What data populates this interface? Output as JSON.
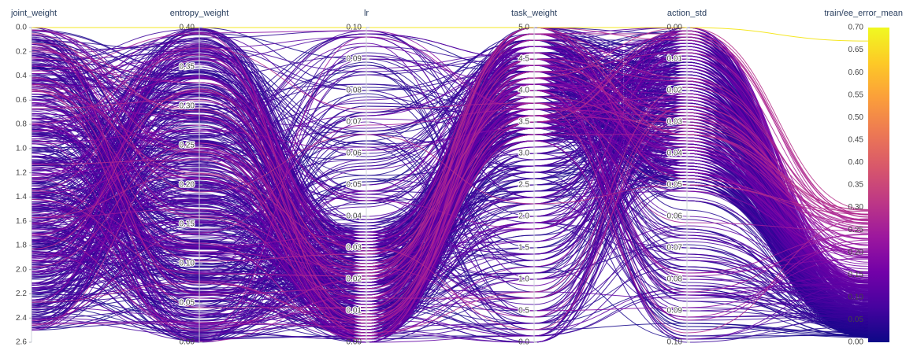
{
  "chart_data": {
    "type": "parallel_coordinates",
    "title": "",
    "axes": [
      {
        "name": "joint_weight",
        "range": [
          2.6,
          0.0
        ],
        "ticks": [
          0.0,
          0.2,
          0.4,
          0.6,
          0.8,
          1.0,
          1.2,
          1.4,
          1.6,
          1.8,
          2.0,
          2.2,
          2.4,
          2.6
        ],
        "tick_labels": [
          "0.0",
          "0.2",
          "0.4",
          "0.6",
          "0.8",
          "1.0",
          "1.2",
          "1.4",
          "1.6",
          "1.8",
          "2.0",
          "2.2",
          "2.4",
          "2.6"
        ]
      },
      {
        "name": "entropy_weight",
        "range": [
          0.0,
          0.4
        ],
        "ticks": [
          0.4,
          0.35,
          0.3,
          0.25,
          0.2,
          0.15,
          0.1,
          0.05,
          0.0
        ],
        "tick_labels": [
          "0.40",
          "0.35",
          "0.30",
          "0.25",
          "0.20",
          "0.15",
          "0.10",
          "0.05",
          "0.00"
        ]
      },
      {
        "name": "lr",
        "range": [
          0.0,
          0.1
        ],
        "ticks": [
          0.1,
          0.09,
          0.08,
          0.07,
          0.06,
          0.05,
          0.04,
          0.03,
          0.02,
          0.01,
          0.0
        ],
        "tick_labels": [
          "0.10",
          "0.09",
          "0.08",
          "0.07",
          "0.06",
          "0.05",
          "0.04",
          "0.03",
          "0.02",
          "0.01",
          "0.00"
        ]
      },
      {
        "name": "task_weight",
        "range": [
          0.0,
          5.0
        ],
        "ticks": [
          5.0,
          4.5,
          4.0,
          3.5,
          3.0,
          2.5,
          2.0,
          1.5,
          1.0,
          0.5,
          0.0
        ],
        "tick_labels": [
          "5.0",
          "4.5",
          "4.0",
          "3.5",
          "3.0",
          "2.5",
          "2.0",
          "1.5",
          "1.0",
          "0.5",
          "0.0"
        ]
      },
      {
        "name": "action_std",
        "range": [
          0.1,
          0.0
        ],
        "ticks": [
          0.0,
          0.01,
          0.02,
          0.03,
          0.04,
          0.05,
          0.06,
          0.07,
          0.08,
          0.09,
          0.1
        ],
        "tick_labels": [
          "0.00",
          "0.01",
          "0.02",
          "0.03",
          "0.04",
          "0.05",
          "0.06",
          "0.07",
          "0.08",
          "0.09",
          "0.10"
        ]
      },
      {
        "name": "train/ee_error_mean",
        "range": [
          0.0,
          0.7
        ],
        "ticks": [
          0.7,
          0.65,
          0.6,
          0.55,
          0.5,
          0.45,
          0.4,
          0.35,
          0.3,
          0.25,
          0.2,
          0.15,
          0.1,
          0.05,
          0.0
        ],
        "tick_labels": [
          "0.70",
          "0.65",
          "0.60",
          "0.55",
          "0.50",
          "0.45",
          "0.40",
          "0.35",
          "0.30",
          "0.25",
          "0.20",
          "0.15",
          "0.10",
          "0.05",
          "0.00"
        ]
      }
    ],
    "colorscale": {
      "name": "plasma",
      "range": [
        0.0,
        0.7
      ],
      "colors": [
        "#0d0887",
        "#46039f",
        "#7201a8",
        "#9c179e",
        "#bd3786",
        "#d8576b",
        "#ed7953",
        "#fb9f3a",
        "#fdca26",
        "#f0f921"
      ],
      "ticks": [
        0.7,
        0.65,
        0.6,
        0.55,
        0.5,
        0.45,
        0.4,
        0.35,
        0.3,
        0.25,
        0.2,
        0.15,
        0.1,
        0.05,
        0.0
      ],
      "tick_labels": [
        "0.70",
        "0.65",
        "0.60",
        "0.55",
        "0.50",
        "0.45",
        "0.40",
        "0.35",
        "0.30",
        "0.25",
        "0.20",
        "0.15",
        "0.10",
        "0.05",
        "0.00"
      ]
    },
    "lines_generation": {
      "count": 600,
      "seed": 7
    },
    "highlight_line": {
      "joint_weight": 0.0,
      "entropy_weight": 0.4,
      "lr": 0.1,
      "task_weight": 5.0,
      "action_std": 0.0,
      "train/ee_error_mean": 0.67
    },
    "grid": false,
    "legend": "colorbar-right"
  }
}
